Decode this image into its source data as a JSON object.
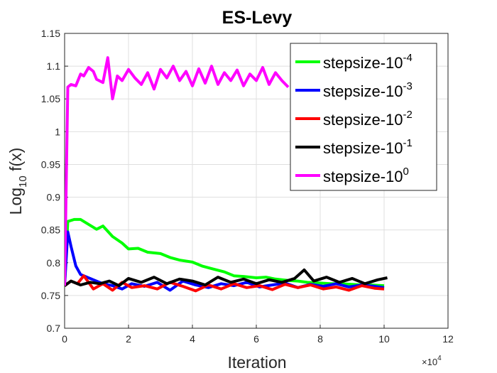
{
  "chart_data": {
    "type": "line",
    "title": "ES-Levy",
    "xlabel": "Iteration",
    "ylabel_main": "Log",
    "ylabel_sub": "10",
    "ylabel_rest": " f(x)",
    "xlim": [
      0,
      12
    ],
    "ylim": [
      0.7,
      1.15
    ],
    "x_scale_base": "×10",
    "x_scale_exp": "4",
    "xticks": [
      0,
      2,
      4,
      6,
      8,
      10,
      12
    ],
    "yticks": [
      0.7,
      0.75,
      0.8,
      0.85,
      0.9,
      0.95,
      1,
      1.05,
      1.1,
      1.15
    ],
    "xtick_labels": [
      "0",
      "2",
      "4",
      "6",
      "8",
      "10",
      "12"
    ],
    "ytick_labels": [
      "0.7",
      "0.75",
      "0.8",
      "0.85",
      "0.9",
      "0.95",
      "1",
      "1.05",
      "1.1",
      "1.15"
    ],
    "grid": true,
    "legend_position": "top-right",
    "series": [
      {
        "name": "stepsize-10",
        "exp": "-4",
        "color": "#00ff00",
        "x": [
          0,
          0.1,
          0.3,
          0.5,
          0.8,
          1.0,
          1.2,
          1.5,
          1.8,
          2.0,
          2.3,
          2.6,
          3.0,
          3.3,
          3.6,
          4.0,
          4.3,
          4.6,
          5.0,
          5.3,
          5.6,
          6.0,
          6.3,
          6.6,
          7.0,
          7.3,
          7.6,
          8.0,
          8.3,
          8.6,
          9.0,
          9.3,
          9.6,
          10.0
        ],
        "values": [
          0.765,
          0.863,
          0.866,
          0.866,
          0.857,
          0.851,
          0.856,
          0.84,
          0.83,
          0.821,
          0.822,
          0.816,
          0.814,
          0.808,
          0.804,
          0.801,
          0.795,
          0.791,
          0.786,
          0.78,
          0.779,
          0.777,
          0.778,
          0.775,
          0.773,
          0.772,
          0.77,
          0.769,
          0.768,
          0.768,
          0.767,
          0.766,
          0.766,
          0.765
        ]
      },
      {
        "name": "stepsize-10",
        "exp": "-3",
        "color": "#0000ff",
        "x": [
          0,
          0.1,
          0.2,
          0.35,
          0.5,
          0.7,
          0.9,
          1.2,
          1.5,
          1.8,
          2.1,
          2.5,
          2.9,
          3.3,
          3.7,
          4.1,
          4.5,
          4.9,
          5.3,
          5.7,
          6.1,
          6.5,
          6.9,
          7.3,
          7.7,
          8.1,
          8.5,
          8.9,
          9.3,
          9.7,
          10.0
        ],
        "values": [
          0.765,
          0.847,
          0.825,
          0.795,
          0.782,
          0.778,
          0.774,
          0.768,
          0.765,
          0.76,
          0.768,
          0.764,
          0.77,
          0.758,
          0.772,
          0.766,
          0.762,
          0.768,
          0.765,
          0.77,
          0.763,
          0.766,
          0.769,
          0.762,
          0.767,
          0.764,
          0.768,
          0.763,
          0.766,
          0.764,
          0.762
        ]
      },
      {
        "name": "stepsize-10",
        "exp": "-2",
        "color": "#ff0000",
        "x": [
          0,
          0.2,
          0.4,
          0.6,
          0.9,
          1.2,
          1.5,
          1.8,
          2.1,
          2.5,
          2.9,
          3.3,
          3.7,
          4.1,
          4.5,
          4.9,
          5.3,
          5.7,
          6.1,
          6.5,
          6.9,
          7.3,
          7.7,
          8.1,
          8.5,
          8.9,
          9.3,
          9.7,
          10.0
        ],
        "values": [
          0.765,
          0.772,
          0.768,
          0.78,
          0.76,
          0.768,
          0.758,
          0.77,
          0.762,
          0.765,
          0.76,
          0.77,
          0.764,
          0.757,
          0.766,
          0.76,
          0.768,
          0.762,
          0.765,
          0.759,
          0.767,
          0.762,
          0.766,
          0.76,
          0.763,
          0.758,
          0.765,
          0.761,
          0.76
        ]
      },
      {
        "name": "stepsize-10",
        "exp": "-1",
        "color": "#000000",
        "x": [
          0,
          0.2,
          0.5,
          0.8,
          1.1,
          1.4,
          1.7,
          2.0,
          2.4,
          2.8,
          3.2,
          3.6,
          4.0,
          4.4,
          4.8,
          5.2,
          5.6,
          6.0,
          6.4,
          6.8,
          7.2,
          7.5,
          7.8,
          8.2,
          8.6,
          9.0,
          9.4,
          9.8,
          10.1
        ],
        "values": [
          0.765,
          0.772,
          0.766,
          0.77,
          0.768,
          0.772,
          0.765,
          0.776,
          0.77,
          0.778,
          0.768,
          0.775,
          0.772,
          0.766,
          0.778,
          0.77,
          0.775,
          0.768,
          0.774,
          0.77,
          0.776,
          0.789,
          0.772,
          0.778,
          0.77,
          0.776,
          0.768,
          0.774,
          0.777
        ]
      },
      {
        "name": "stepsize-10",
        "exp": "0",
        "color": "#ff00ff",
        "x": [
          0,
          0.1,
          0.2,
          0.35,
          0.5,
          0.6,
          0.75,
          0.9,
          1.0,
          1.2,
          1.35,
          1.5,
          1.65,
          1.8,
          2.0,
          2.2,
          2.4,
          2.6,
          2.8,
          3.0,
          3.2,
          3.4,
          3.6,
          3.8,
          4.0,
          4.2,
          4.4,
          4.6,
          4.8,
          5.0,
          5.2,
          5.4,
          5.6,
          5.8,
          6.0,
          6.2,
          6.4,
          6.6,
          6.8,
          7.0
        ],
        "values": [
          0.765,
          1.068,
          1.072,
          1.07,
          1.088,
          1.085,
          1.098,
          1.092,
          1.08,
          1.075,
          1.113,
          1.05,
          1.085,
          1.078,
          1.095,
          1.082,
          1.072,
          1.09,
          1.065,
          1.095,
          1.082,
          1.1,
          1.078,
          1.092,
          1.07,
          1.096,
          1.074,
          1.1,
          1.072,
          1.09,
          1.078,
          1.094,
          1.07,
          1.088,
          1.078,
          1.098,
          1.072,
          1.09,
          1.078,
          1.068
        ]
      }
    ]
  }
}
